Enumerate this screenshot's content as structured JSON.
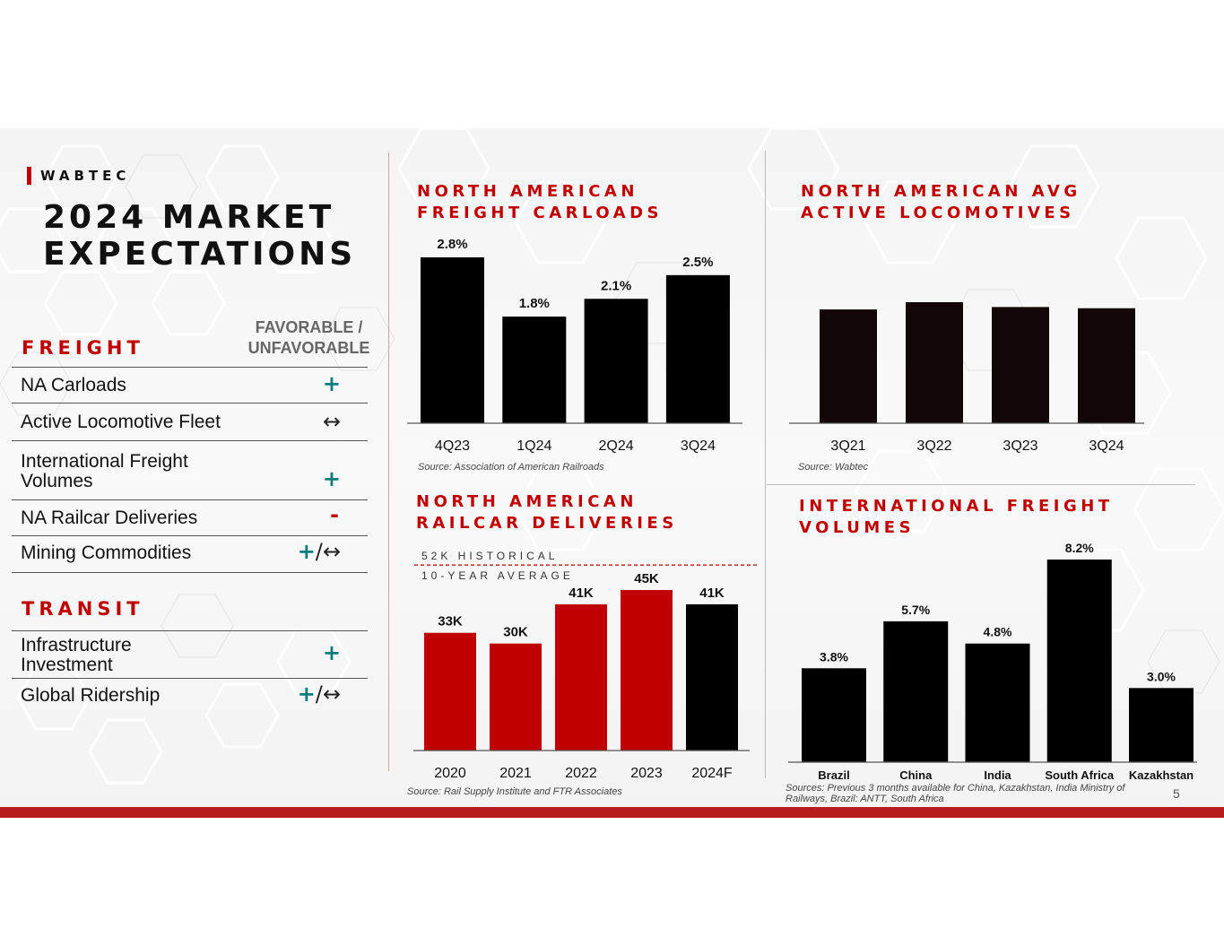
{
  "brand": {
    "name": "WABTEC",
    "accent": "#c00000"
  },
  "title": {
    "line1": "2024 MARKET",
    "line2": "EXPECTATIONS"
  },
  "freight": {
    "heading": "FREIGHT",
    "column_header_1": "FAVORABLE /",
    "column_header_2": "UNFAVORABLE",
    "rows": [
      {
        "label": "NA Carloads",
        "outlook": "+"
      },
      {
        "label": "Active Locomotive Fleet",
        "outlook": "↔"
      },
      {
        "label_1": "International Freight",
        "label_2": "Volumes",
        "outlook": "+"
      },
      {
        "label": "NA Railcar Deliveries",
        "outlook": "-"
      },
      {
        "label": "Mining Commodities",
        "outlook_plus": "+",
        "outlook_rest": "/↔"
      }
    ]
  },
  "transit": {
    "heading": "TRANSIT",
    "rows": [
      {
        "label_1": "Infrastructure",
        "label_2": "Investment",
        "outlook": "+"
      },
      {
        "label": "Global Ridership",
        "outlook_plus": "+",
        "outlook_rest": "/↔"
      }
    ]
  },
  "colors": {
    "accent_red": "#c00000",
    "bar_black": "#000000",
    "bar_dark": "#120606",
    "favorable_teal": "#0b7b7b"
  },
  "chart_data": [
    {
      "id": "carloads",
      "type": "bar",
      "title_1": "NORTH AMERICAN",
      "title_2": "FREIGHT CARLOADS",
      "categories": [
        "4Q23",
        "1Q24",
        "2Q24",
        "3Q24"
      ],
      "values": [
        2.8,
        1.8,
        2.1,
        2.5
      ],
      "labels": [
        "2.8%",
        "1.8%",
        "2.1%",
        "2.5%"
      ],
      "ylim": [
        0,
        2.8
      ],
      "source": "Source: Association of American Railroads"
    },
    {
      "id": "locomotives",
      "type": "bar",
      "title_1": "NORTH AMERICAN AVG",
      "title_2": "ACTIVE LOCOMOTIVES",
      "categories": [
        "3Q21",
        "3Q22",
        "3Q23",
        "3Q24"
      ],
      "values": [
        0.94,
        1.0,
        0.96,
        0.95
      ],
      "labels": [
        "",
        "",
        "",
        ""
      ],
      "ylim": [
        0,
        1.0
      ],
      "source": "Source: Wabtec"
    },
    {
      "id": "railcars",
      "type": "bar",
      "title_1": "NORTH AMERICAN",
      "title_2": "RAILCAR DELIVERIES",
      "categories": [
        "2020",
        "2021",
        "2022",
        "2023",
        "2024F"
      ],
      "values": [
        33,
        30,
        41,
        45,
        41
      ],
      "labels": [
        "33K",
        "30K",
        "41K",
        "45K",
        "41K"
      ],
      "bar_colors": [
        "#c00000",
        "#c00000",
        "#c00000",
        "#c00000",
        "#000000"
      ],
      "reference_line": {
        "value": 52,
        "label_1": "52K HISTORICAL",
        "label_2": "10-YEAR AVERAGE"
      },
      "ylim": [
        0,
        45
      ],
      "source": "Source: Rail Supply Institute and FTR Associates"
    },
    {
      "id": "international",
      "type": "bar",
      "title_1": "INTERNATIONAL FREIGHT",
      "title_2": "VOLUMES",
      "categories": [
        "Brazil",
        "China",
        "India",
        "South Africa",
        "Kazakhstan"
      ],
      "values": [
        3.8,
        5.7,
        4.8,
        8.2,
        3.0
      ],
      "labels": [
        "3.8%",
        "5.7%",
        "4.8%",
        "8.2%",
        "3.0%"
      ],
      "ylim": [
        0,
        8.2
      ],
      "source_1": "Sources: Previous 3 months available for China, Kazakhstan, India Ministry of",
      "source_2": "Railways, Brazil: ANTT, South Africa"
    }
  ],
  "page_number": "5"
}
